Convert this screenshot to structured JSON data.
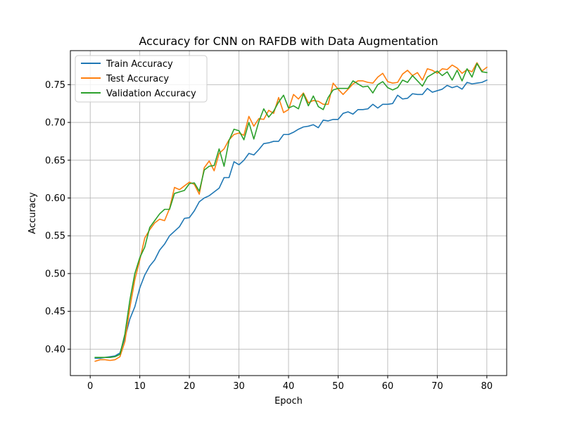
{
  "chart_data": {
    "type": "line",
    "title": "Accuracy for CNN on RAFDB with Data Augmentation",
    "xlabel": "Epoch",
    "ylabel": "Accuracy",
    "xlim": [
      -4,
      84
    ],
    "ylim": [
      0.365,
      0.795
    ],
    "xticks": [
      0,
      10,
      20,
      30,
      40,
      50,
      60,
      70,
      80
    ],
    "yticks": [
      0.4,
      0.45,
      0.5,
      0.55,
      0.6,
      0.65,
      0.7,
      0.75
    ],
    "ytick_labels": [
      "0.40",
      "0.45",
      "0.50",
      "0.55",
      "0.60",
      "0.65",
      "0.70",
      "0.75"
    ],
    "grid": true,
    "legend_position": "top-left",
    "x": [
      1,
      2,
      3,
      4,
      5,
      6,
      7,
      8,
      9,
      10,
      11,
      12,
      13,
      14,
      15,
      16,
      17,
      18,
      19,
      20,
      21,
      22,
      23,
      24,
      25,
      26,
      27,
      28,
      29,
      30,
      31,
      32,
      33,
      34,
      35,
      36,
      37,
      38,
      39,
      40,
      41,
      42,
      43,
      44,
      45,
      46,
      47,
      48,
      49,
      50,
      51,
      52,
      53,
      54,
      55,
      56,
      57,
      58,
      59,
      60,
      61,
      62,
      63,
      64,
      65,
      66,
      67,
      68,
      69,
      70,
      71,
      72,
      73,
      74,
      75,
      76,
      77,
      78,
      79,
      80
    ],
    "series": [
      {
        "name": "Train Accuracy",
        "color": "#1f77b4",
        "values": [
          0.388,
          0.388,
          0.389,
          0.39,
          0.391,
          0.395,
          0.415,
          0.44,
          0.456,
          0.481,
          0.498,
          0.51,
          0.518,
          0.531,
          0.539,
          0.55,
          0.556,
          0.562,
          0.573,
          0.574,
          0.583,
          0.595,
          0.6,
          0.603,
          0.608,
          0.613,
          0.627,
          0.627,
          0.648,
          0.644,
          0.65,
          0.659,
          0.657,
          0.664,
          0.672,
          0.673,
          0.675,
          0.675,
          0.684,
          0.684,
          0.687,
          0.691,
          0.694,
          0.695,
          0.697,
          0.693,
          0.703,
          0.702,
          0.704,
          0.704,
          0.712,
          0.714,
          0.711,
          0.717,
          0.717,
          0.718,
          0.724,
          0.719,
          0.724,
          0.724,
          0.725,
          0.736,
          0.731,
          0.732,
          0.738,
          0.737,
          0.737,
          0.745,
          0.74,
          0.742,
          0.744,
          0.749,
          0.746,
          0.748,
          0.744,
          0.753,
          0.751,
          0.752,
          0.753,
          0.756
        ]
      },
      {
        "name": "Test Accuracy",
        "color": "#ff7f0e",
        "values": [
          0.384,
          0.386,
          0.386,
          0.385,
          0.386,
          0.39,
          0.41,
          0.455,
          0.492,
          0.518,
          0.547,
          0.558,
          0.567,
          0.572,
          0.57,
          0.586,
          0.614,
          0.611,
          0.616,
          0.621,
          0.618,
          0.605,
          0.64,
          0.649,
          0.636,
          0.659,
          0.665,
          0.677,
          0.684,
          0.686,
          0.683,
          0.708,
          0.695,
          0.705,
          0.704,
          0.716,
          0.712,
          0.733,
          0.713,
          0.717,
          0.737,
          0.731,
          0.739,
          0.726,
          0.729,
          0.728,
          0.724,
          0.724,
          0.752,
          0.744,
          0.737,
          0.744,
          0.751,
          0.755,
          0.755,
          0.753,
          0.752,
          0.76,
          0.765,
          0.754,
          0.752,
          0.753,
          0.764,
          0.769,
          0.762,
          0.766,
          0.756,
          0.771,
          0.769,
          0.765,
          0.771,
          0.77,
          0.776,
          0.772,
          0.765,
          0.77,
          0.767,
          0.779,
          0.768,
          0.773
        ]
      },
      {
        "name": "Validation Accuracy",
        "color": "#2ca02c",
        "values": [
          0.389,
          0.389,
          0.389,
          0.389,
          0.39,
          0.393,
          0.42,
          0.465,
          0.5,
          0.521,
          0.535,
          0.561,
          0.57,
          0.579,
          0.585,
          0.585,
          0.606,
          0.608,
          0.61,
          0.619,
          0.62,
          0.609,
          0.637,
          0.642,
          0.643,
          0.665,
          0.642,
          0.676,
          0.691,
          0.689,
          0.677,
          0.7,
          0.678,
          0.701,
          0.718,
          0.707,
          0.715,
          0.727,
          0.736,
          0.719,
          0.722,
          0.718,
          0.738,
          0.722,
          0.735,
          0.721,
          0.717,
          0.733,
          0.743,
          0.745,
          0.745,
          0.745,
          0.755,
          0.751,
          0.747,
          0.748,
          0.739,
          0.75,
          0.754,
          0.746,
          0.743,
          0.746,
          0.756,
          0.753,
          0.762,
          0.755,
          0.748,
          0.76,
          0.764,
          0.768,
          0.762,
          0.767,
          0.756,
          0.769,
          0.755,
          0.771,
          0.76,
          0.778,
          0.767,
          0.766
        ]
      }
    ]
  }
}
